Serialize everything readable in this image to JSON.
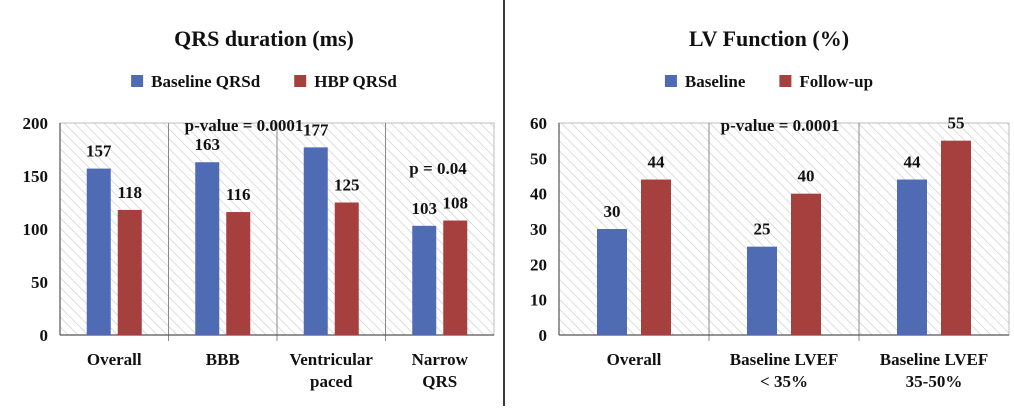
{
  "chart_data": [
    {
      "type": "bar",
      "title": "QRS duration (ms)",
      "categories": [
        [
          "Overall"
        ],
        [
          "BBB"
        ],
        [
          "Ventricular",
          "paced"
        ],
        [
          "Narrow",
          "QRS"
        ]
      ],
      "series": [
        {
          "name": "Baseline QRSd",
          "color": "#4f6bb3",
          "values": [
            157,
            163,
            177,
            103
          ]
        },
        {
          "name": "HBP QRSd",
          "color": "#a5403f",
          "values": [
            118,
            116,
            125,
            108
          ]
        }
      ],
      "ylim": [
        0,
        200
      ],
      "yticks": [
        0,
        50,
        100,
        150,
        200
      ],
      "legend_position": "top",
      "grid": false,
      "annotations": [
        "p-value = 0.0001",
        "p = 0.04"
      ]
    },
    {
      "type": "bar",
      "title": "LV Function (%)",
      "categories": [
        [
          "Overall"
        ],
        [
          "Baseline LVEF",
          "< 35%"
        ],
        [
          "Baseline LVEF",
          "35-50%"
        ]
      ],
      "series": [
        {
          "name": "Baseline",
          "color": "#4f6bb3",
          "values": [
            30,
            25,
            44
          ]
        },
        {
          "name": "Follow-up",
          "color": "#a5403f",
          "values": [
            44,
            40,
            55
          ]
        }
      ],
      "ylim": [
        0,
        60
      ],
      "yticks": [
        0,
        10,
        20,
        30,
        40,
        50,
        60
      ],
      "legend_position": "top",
      "grid": false,
      "annotations": [
        "p-value = 0.0001"
      ]
    }
  ]
}
